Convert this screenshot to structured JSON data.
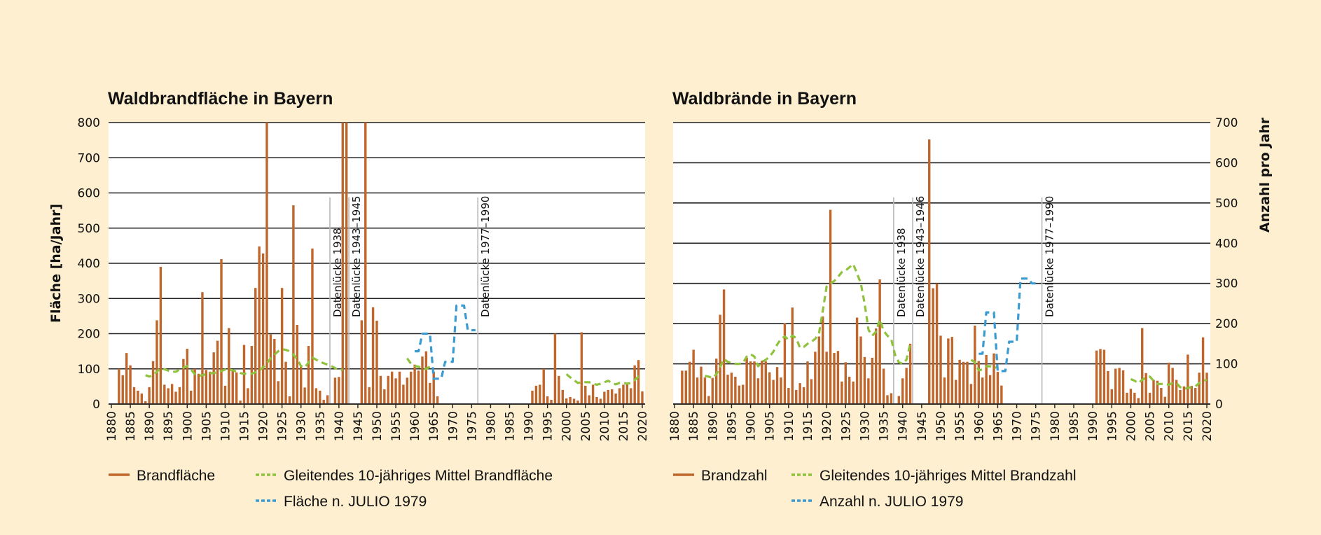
{
  "colors": {
    "background": "#fdefcf",
    "plot": "#ffffff",
    "bar": "#c0662b",
    "mean": "#8fc23c",
    "julio": "#3a9bd2",
    "grid": "#222222",
    "gap": "#b8b8b8"
  },
  "chart_data": [
    {
      "type": "bar",
      "title": "Waldbrandfläche in Bayern",
      "ylabel": "Fläche [ha/Jahr]",
      "xlabel": "",
      "ylim": [
        0,
        800
      ],
      "yticks": [
        0,
        100,
        200,
        300,
        400,
        500,
        600,
        700,
        800
      ],
      "xlim": [
        1880,
        2020
      ],
      "xticks": [
        1880,
        1885,
        1890,
        1895,
        1900,
        1905,
        1910,
        1915,
        1920,
        1925,
        1930,
        1935,
        1940,
        1945,
        1950,
        1955,
        1960,
        1965,
        1970,
        1975,
        1980,
        1985,
        1990,
        1995,
        2000,
        2005,
        2010,
        2015,
        2020
      ],
      "grid": true,
      "y_axis_side": "left",
      "legend_position": "bottom",
      "gap_annotations": [
        {
          "label": "Datenlücke 1938",
          "year": 1938
        },
        {
          "label": "Datenlücke 1943–1945",
          "year": 1943
        },
        {
          "label": "Datenlücke 1977–1990",
          "year": 1977
        }
      ],
      "series": [
        {
          "name": "Brandfläche",
          "style": "bar",
          "x": [
            1882,
            1883,
            1884,
            1885,
            1886,
            1887,
            1888,
            1889,
            1890,
            1891,
            1892,
            1893,
            1894,
            1895,
            1896,
            1897,
            1898,
            1899,
            1900,
            1901,
            1902,
            1903,
            1904,
            1905,
            1906,
            1907,
            1908,
            1909,
            1910,
            1911,
            1912,
            1913,
            1914,
            1915,
            1916,
            1917,
            1918,
            1919,
            1920,
            1921,
            1922,
            1923,
            1924,
            1925,
            1926,
            1927,
            1928,
            1929,
            1930,
            1931,
            1932,
            1933,
            1934,
            1935,
            1936,
            1937,
            1939,
            1940,
            1941,
            1942,
            1946,
            1947,
            1948,
            1949,
            1950,
            1951,
            1952,
            1953,
            1954,
            1955,
            1956,
            1957,
            1958,
            1959,
            1960,
            1961,
            1962,
            1963,
            1964,
            1965,
            1966,
            1991,
            1992,
            1993,
            1994,
            1995,
            1996,
            1997,
            1998,
            1999,
            2000,
            2001,
            2002,
            2003,
            2004,
            2005,
            2006,
            2007,
            2008,
            2009,
            2010,
            2011,
            2012,
            2013,
            2014,
            2015,
            2016,
            2017,
            2018,
            2019,
            2020
          ],
          "values": [
            100,
            82,
            145,
            110,
            48,
            38,
            30,
            8,
            48,
            122,
            238,
            390,
            55,
            45,
            57,
            35,
            48,
            128,
            157,
            38,
            100,
            86,
            318,
            97,
            92,
            147,
            180,
            412,
            52,
            216,
            95,
            90,
            10,
            168,
            45,
            165,
            330,
            448,
            428,
            800,
            198,
            185,
            65,
            330,
            120,
            22,
            565,
            225,
            110,
            47,
            165,
            442,
            45,
            38,
            12,
            25,
            75,
            77,
            800,
            800,
            238,
            800,
            48,
            275,
            237,
            80,
            42,
            80,
            92,
            73,
            92,
            55,
            75,
            92,
            112,
            95,
            135,
            150,
            60,
            92,
            22,
            38,
            52,
            55,
            100,
            22,
            12,
            200,
            80,
            40,
            16,
            20,
            15,
            10,
            204,
            52,
            25,
            55,
            20,
            15,
            35,
            40,
            42,
            30,
            45,
            55,
            60,
            45,
            110,
            125,
            36
          ]
        },
        {
          "name": "Gleitendes 10-jähriges Mittel Brandfläche",
          "style": "dashed-line",
          "x": [
            1889,
            1890,
            1891,
            1892,
            1893,
            1894,
            1895,
            1896,
            1897,
            1898,
            1899,
            1900,
            1901,
            1902,
            1903,
            1904,
            1905,
            1906,
            1907,
            1908,
            1909,
            1910,
            1911,
            1912,
            1913,
            1914,
            1915,
            1916,
            1917,
            1918,
            1919,
            1920,
            1921,
            1922,
            1923,
            1924,
            1925,
            1926,
            1927,
            1928,
            1929,
            1930,
            1931,
            1932,
            1933,
            1934,
            1935,
            1936,
            1937,
            1938,
            1939,
            1940,
            1941
          ],
          "values": [
            82,
            78,
            82,
            92,
            102,
            99,
            95,
            92,
            92,
            98,
            103,
            108,
            98,
            85,
            80,
            82,
            85,
            88,
            88,
            90,
            94,
            98,
            98,
            96,
            92,
            88,
            86,
            86,
            86,
            90,
            96,
            104,
            116,
            130,
            140,
            150,
            156,
            154,
            150,
            140,
            128,
            108,
            104,
            118,
            132,
            126,
            120,
            116,
            112,
            108,
            102,
            96,
            98
          ]
        },
        {
          "name": "Gleitendes 10-jähriges Mittel Brandfläche",
          "style": "dashed-line",
          "x": [
            1958,
            1959,
            1960,
            1961,
            1962,
            1963,
            1964,
            1965
          ],
          "values": [
            130,
            115,
            108,
            106,
            100,
            100,
            106,
            104
          ]
        },
        {
          "name": "Gleitendes 10-jähriges Mittel Brandfläche",
          "style": "dashed-line",
          "x": [
            2000,
            2001,
            2002,
            2003,
            2004,
            2005,
            2006,
            2007,
            2008,
            2009,
            2010,
            2011,
            2012,
            2013,
            2014,
            2015,
            2016,
            2017,
            2018,
            2019,
            2020
          ],
          "values": [
            85,
            76,
            68,
            60,
            62,
            62,
            62,
            58,
            55,
            58,
            62,
            66,
            60,
            56,
            60,
            60,
            58,
            60,
            68,
            78,
            76
          ]
        },
        {
          "name": "Fläche n. JULIO 1979",
          "style": "dashed-line",
          "x": [
            1960,
            1961,
            1962,
            1963,
            1964,
            1965,
            1966,
            1967,
            1968,
            1969,
            1970,
            1971,
            1972,
            1973,
            1974,
            1975,
            1976
          ],
          "values": [
            150,
            150,
            200,
            200,
            200,
            72,
            72,
            72,
            120,
            120,
            120,
            280,
            280,
            280,
            210,
            210,
            210
          ]
        }
      ]
    },
    {
      "type": "bar",
      "title": "Waldbrände in Bayern",
      "ylabel": "Anzahl pro Jahr",
      "xlabel": "",
      "ylim": [
        0,
        700
      ],
      "yticks": [
        0,
        100,
        200,
        300,
        400,
        500,
        600,
        700
      ],
      "xlim": [
        1880,
        2020
      ],
      "xticks": [
        1880,
        1885,
        1890,
        1895,
        1900,
        1905,
        1910,
        1915,
        1920,
        1925,
        1930,
        1935,
        1940,
        1945,
        1950,
        1955,
        1960,
        1965,
        1970,
        1975,
        1980,
        1985,
        1990,
        1995,
        2000,
        2005,
        2010,
        2015,
        2020
      ],
      "grid": true,
      "y_axis_side": "right",
      "legend_position": "bottom",
      "gap_annotations": [
        {
          "label": "Datenlücke 1938",
          "year": 1938
        },
        {
          "label": "Datenlücke 1943–1946",
          "year": 1943
        },
        {
          "label": "Datenlücke 1977–1990",
          "year": 1977
        }
      ],
      "series": [
        {
          "name": "Brandzahl",
          "style": "bar",
          "x": [
            1882,
            1883,
            1884,
            1885,
            1886,
            1887,
            1888,
            1889,
            1890,
            1891,
            1892,
            1893,
            1894,
            1895,
            1896,
            1897,
            1898,
            1899,
            1900,
            1901,
            1902,
            1903,
            1904,
            1905,
            1906,
            1907,
            1908,
            1909,
            1910,
            1911,
            1912,
            1913,
            1914,
            1915,
            1916,
            1917,
            1918,
            1919,
            1920,
            1921,
            1922,
            1923,
            1924,
            1925,
            1926,
            1927,
            1928,
            1929,
            1930,
            1931,
            1932,
            1933,
            1934,
            1935,
            1936,
            1937,
            1939,
            1940,
            1941,
            1942,
            1947,
            1948,
            1949,
            1950,
            1951,
            1952,
            1953,
            1954,
            1955,
            1956,
            1957,
            1958,
            1959,
            1960,
            1961,
            1962,
            1963,
            1964,
            1965,
            1966,
            1991,
            1992,
            1993,
            1994,
            1995,
            1996,
            1997,
            1998,
            1999,
            2000,
            2001,
            2002,
            2003,
            2004,
            2005,
            2006,
            2007,
            2008,
            2009,
            2010,
            2011,
            2012,
            2013,
            2014,
            2015,
            2016,
            2017,
            2018,
            2019,
            2020
          ],
          "values": [
            83,
            83,
            105,
            135,
            66,
            93,
            66,
            20,
            65,
            113,
            222,
            285,
            73,
            78,
            68,
            46,
            48,
            115,
            106,
            106,
            64,
            108,
            106,
            79,
            60,
            92,
            66,
            201,
            40,
            240,
            35,
            52,
            42,
            106,
            62,
            130,
            168,
            218,
            130,
            483,
            127,
            132,
            56,
            104,
            68,
            56,
            215,
            168,
            117,
            64,
            115,
            188,
            310,
            88,
            22,
            27,
            20,
            64,
            90,
            150,
            658,
            288,
            300,
            170,
            66,
            163,
            167,
            60,
            110,
            105,
            105,
            50,
            195,
            107,
            66,
            122,
            72,
            126,
            80,
            46,
            133,
            137,
            135,
            82,
            37,
            88,
            90,
            84,
            28,
            38,
            28,
            15,
            189,
            77,
            28,
            60,
            58,
            40,
            18,
            103,
            90,
            60,
            35,
            44,
            123,
            45,
            40,
            78,
            166,
            78
          ]
        },
        {
          "name": "Gleitendes 10-jähriges Mittel Brandzahl",
          "style": "dashed-line",
          "x": [
            1888,
            1889,
            1890,
            1891,
            1892,
            1893,
            1894,
            1895,
            1896,
            1897,
            1898,
            1899,
            1900,
            1901,
            1902,
            1903,
            1904,
            1905,
            1906,
            1907,
            1908,
            1909,
            1910,
            1911,
            1912,
            1913,
            1914,
            1915,
            1916,
            1917,
            1918,
            1919,
            1920,
            1921,
            1922,
            1923,
            1924,
            1925,
            1926,
            1927,
            1928,
            1929,
            1930,
            1931,
            1932,
            1933,
            1934,
            1935,
            1936,
            1937,
            1938,
            1939,
            1940,
            1941,
            1942
          ],
          "values": [
            70,
            68,
            65,
            74,
            92,
            112,
            105,
            102,
            100,
            100,
            102,
            118,
            124,
            118,
            94,
            105,
            110,
            118,
            130,
            148,
            162,
            168,
            160,
            170,
            164,
            140,
            142,
            150,
            155,
            162,
            176,
            232,
            292,
            300,
            306,
            316,
            328,
            332,
            340,
            348,
            325,
            300,
            250,
            185,
            170,
            180,
            210,
            182,
            170,
            162,
            122,
            104,
            100,
            110,
            150
          ]
        },
        {
          "name": "Gleitendes 10-jähriges Mittel Brandzahl",
          "style": "dashed-line",
          "x": [
            1958,
            1959,
            1960,
            1961,
            1962,
            1963,
            1964,
            1965
          ],
          "values": [
            110,
            104,
            84,
            86,
            94,
            94,
            90,
            92
          ]
        },
        {
          "name": "Gleitendes 10-jähriges Mittel Brandzahl",
          "style": "dashed-line",
          "x": [
            2000,
            2001,
            2002,
            2003,
            2004,
            2005,
            2006,
            2007,
            2008,
            2009,
            2010,
            2011,
            2012,
            2013,
            2014,
            2015,
            2016,
            2017,
            2018,
            2019,
            2020
          ],
          "values": [
            62,
            58,
            52,
            60,
            66,
            68,
            58,
            50,
            50,
            50,
            48,
            52,
            52,
            42,
            38,
            40,
            42,
            44,
            52,
            58,
            60
          ]
        },
        {
          "name": "Anzahl n. JULIO 1979",
          "style": "dashed-line",
          "x": [
            1960,
            1961,
            1962,
            1963,
            1964,
            1965,
            1966,
            1967,
            1968,
            1969,
            1970,
            1971,
            1972,
            1973,
            1974,
            1975,
            1976
          ],
          "values": [
            125,
            125,
            228,
            228,
            228,
            82,
            82,
            82,
            155,
            155,
            155,
            312,
            312,
            312,
            300,
            300,
            300
          ]
        }
      ]
    }
  ],
  "legends": [
    {
      "items": [
        {
          "label": "Brandfläche",
          "kind": "bar"
        },
        {
          "label": "Gleitendes 10-jähriges Mittel Brandfläche",
          "kind": "mean"
        },
        {
          "label": "Fläche n. JULIO 1979",
          "kind": "julio"
        }
      ]
    },
    {
      "items": [
        {
          "label": "Brandzahl",
          "kind": "bar"
        },
        {
          "label": "Gleitendes 10-jähriges Mittel Brandzahl",
          "kind": "mean"
        },
        {
          "label": "Anzahl n. JULIO 1979",
          "kind": "julio"
        }
      ]
    }
  ]
}
